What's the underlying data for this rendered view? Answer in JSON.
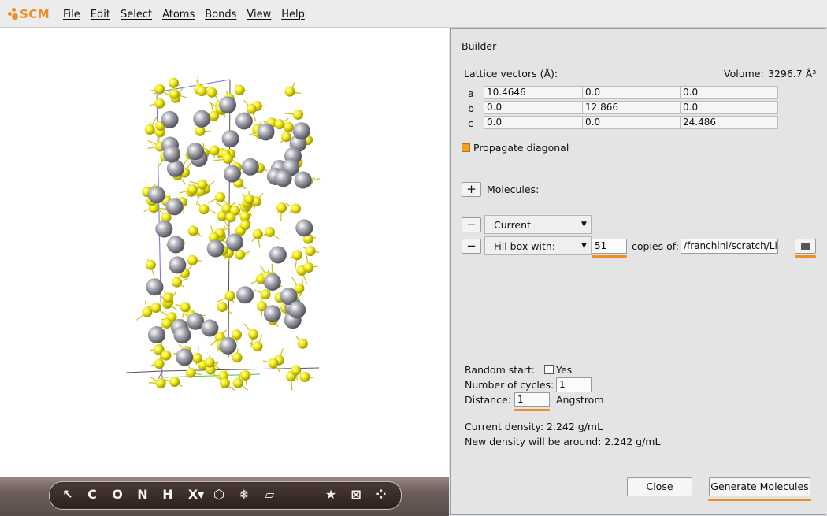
{
  "app": {
    "logo_text": "SCM",
    "menu": [
      "File",
      "Edit",
      "Select",
      "Atoms",
      "Bonds",
      "View",
      "Help"
    ]
  },
  "toolbar": {
    "tools": [
      {
        "icon": "select-arrow-icon",
        "glyph": "↖"
      },
      {
        "icon": "carbon-icon",
        "glyph": "C"
      },
      {
        "icon": "oxygen-icon",
        "glyph": "O"
      },
      {
        "icon": "nitrogen-icon",
        "glyph": "N"
      },
      {
        "icon": "hydrogen-icon",
        "glyph": "H"
      },
      {
        "icon": "element-picker-icon",
        "glyph": "X▾"
      },
      {
        "icon": "ring-icon",
        "glyph": "⬡"
      },
      {
        "icon": "structure-icon",
        "glyph": "❄"
      },
      {
        "icon": "surface-icon",
        "glyph": "▱"
      },
      {
        "icon": "favorite-star-icon",
        "glyph": "★"
      },
      {
        "icon": "builder-box-icon",
        "glyph": "⊠"
      },
      {
        "icon": "molecules-icon",
        "glyph": "⁘"
      }
    ]
  },
  "builder": {
    "title": "Builder",
    "lattice_label": "Lattice vectors (Å):",
    "volume_label": "Volume:",
    "volume_value": "3296.7 Å³",
    "rows": [
      {
        "label": "a",
        "values": [
          "10.4646",
          "0.0",
          "0.0"
        ]
      },
      {
        "label": "b",
        "values": [
          "0.0",
          "12.866",
          "0.0"
        ]
      },
      {
        "label": "c",
        "values": [
          "0.0",
          "0.0",
          "24.486"
        ]
      }
    ],
    "propagate_label": "Propagate diagonal",
    "add_button": "+",
    "molecules_label": "Molecules:",
    "remove_button": "−",
    "current_option": "Current",
    "fill_option": "Fill box with:",
    "copies_value": "51",
    "copies_of_label": "copies of:",
    "path_value": "/franchini/scratch/Li",
    "random_start_label": "Random start:",
    "yes_label": "Yes",
    "cycles_label": "Number of cycles:",
    "cycles_value": "1",
    "distance_label": "Distance:",
    "distance_value": "1",
    "distance_unit": "Angstrom",
    "current_density": "Current density: 2.242 g/mL",
    "new_density": "New density will be around: 2.242 g/mL",
    "close_button": "Close",
    "generate_button": "Generate Molecules",
    "accent_color": "#f28c28"
  },
  "molecule_view": {
    "sulfur_color": "#f2ec1c",
    "lithium_color": "#a9a9b3"
  }
}
